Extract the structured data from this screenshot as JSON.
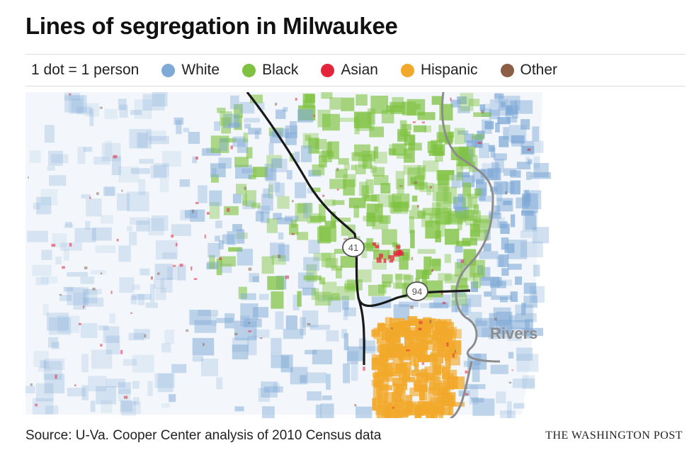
{
  "title": "Lines of segregation in Milwaukee",
  "legend": {
    "scale": "1 dot = 1 person",
    "items": [
      {
        "label": "White",
        "color": "#7fa9d6"
      },
      {
        "label": "Black",
        "color": "#7fc241"
      },
      {
        "label": "Asian",
        "color": "#e3243b"
      },
      {
        "label": "Hispanic",
        "color": "#f2a92b"
      },
      {
        "label": "Other",
        "color": "#8c5e46"
      }
    ]
  },
  "map": {
    "highway_41": "41",
    "highway_94": "94",
    "rivers_label": "Rivers"
  },
  "source": "Source: U-Va. Cooper Center analysis of 2010 Census data",
  "credit": "THE WASHINGTON POST"
}
